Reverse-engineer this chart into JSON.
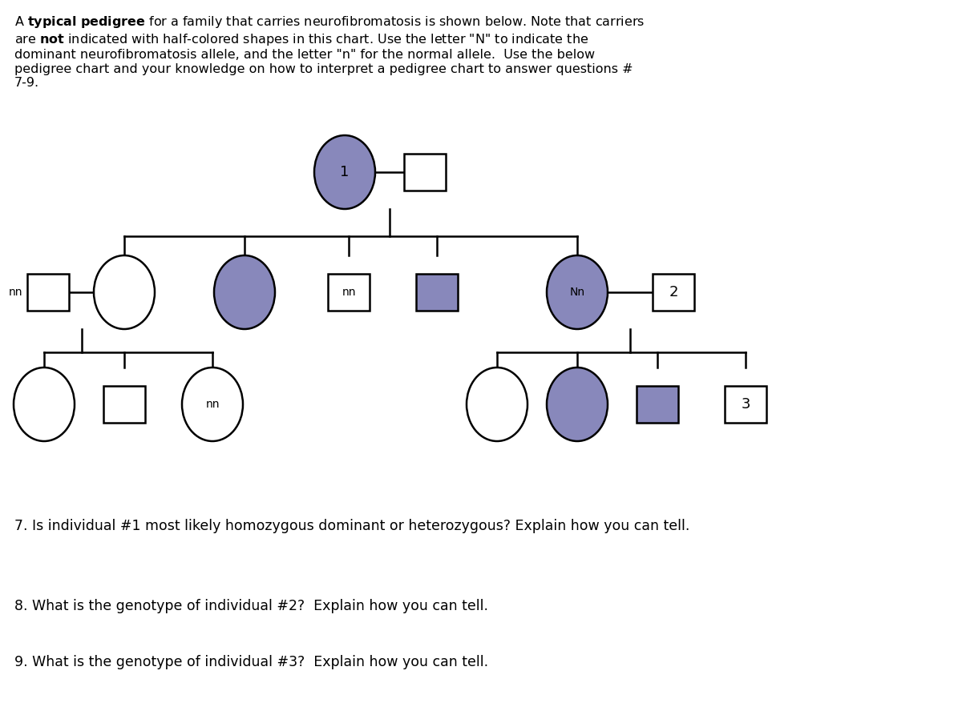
{
  "background_color": "#ffffff",
  "text_color": "#000000",
  "filled_color": "#8888bb",
  "unfilled_color": "#ffffff",
  "border_color": "#000000",
  "q7": "7. Is individual #1 most likely homozygous dominant or heterozygous? Explain how you can tell.",
  "q8": "8. What is the genotype of individual #2?  Explain how you can tell.",
  "q9": "9. What is the genotype of individual #3?  Explain how you can tell.",
  "figsize": [
    12,
    9.08
  ],
  "dpi": 100,
  "lw": 1.8
}
